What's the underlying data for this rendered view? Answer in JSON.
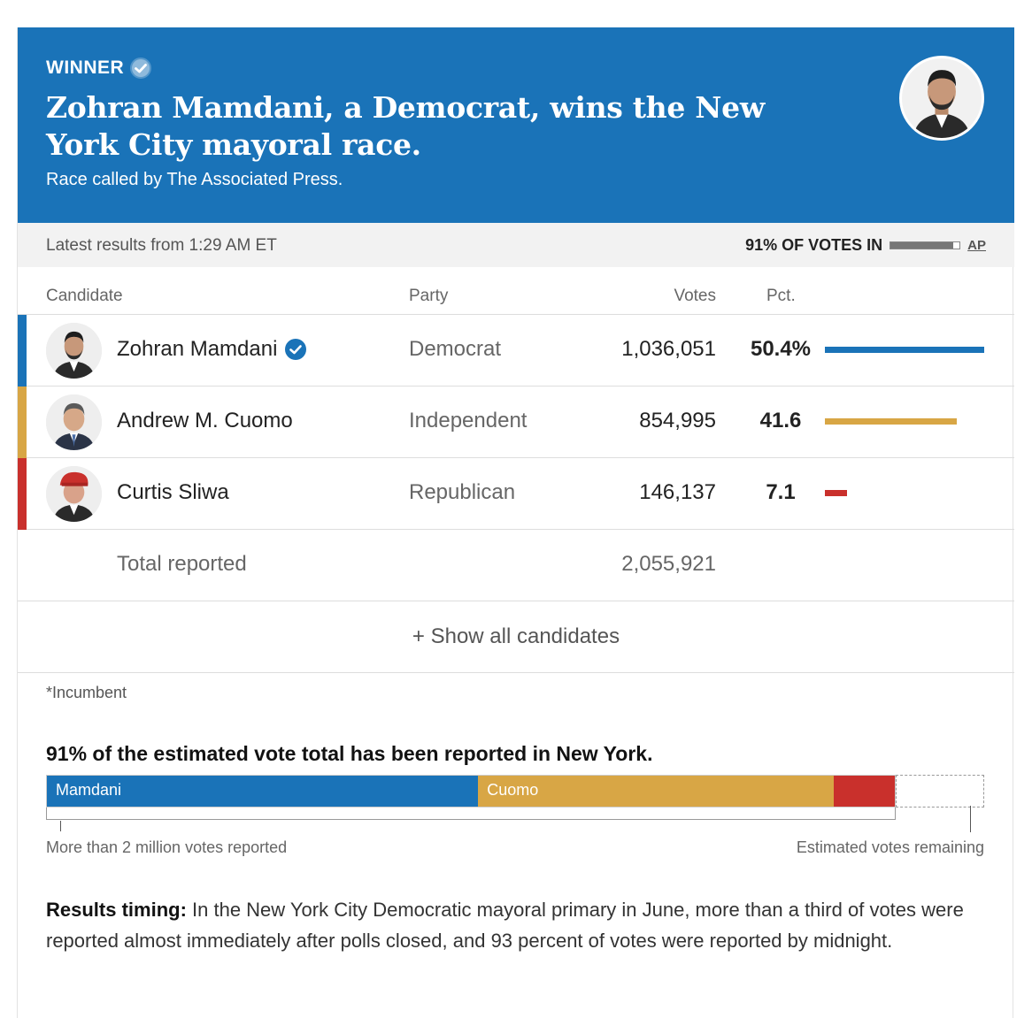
{
  "header": {
    "winner_label": "WINNER",
    "headline": "Zohran Mamdani, a Democrat, wins the New York City mayoral race.",
    "called_by": "Race called by The Associated Press."
  },
  "status": {
    "latest": "Latest results from 1:29 AM ET",
    "votes_in": "91% OF VOTES IN",
    "votes_in_fraction": 0.91,
    "source": "AP"
  },
  "table": {
    "headers": {
      "candidate": "Candidate",
      "party": "Party",
      "votes": "Votes",
      "pct": "Pct."
    },
    "rows": [
      {
        "name": "Zohran Mamdani",
        "party": "Democrat",
        "votes": "1,036,051",
        "pct": "50.4%",
        "pct_value": 50.4,
        "color": "#1a73b8",
        "winner": true
      },
      {
        "name": "Andrew M. Cuomo",
        "party": "Independent",
        "votes": "854,995",
        "pct": "41.6",
        "pct_value": 41.6,
        "color": "#d8a645",
        "winner": false
      },
      {
        "name": "Curtis Sliwa",
        "party": "Republican",
        "votes": "146,137",
        "pct": "7.1",
        "pct_value": 7.1,
        "color": "#c9302c",
        "winner": false
      }
    ],
    "total_label": "Total reported",
    "total_value": "2,055,921",
    "show_all": "+ Show all candidates",
    "incumbent_note": "*Incumbent"
  },
  "estimate": {
    "title": "91% of the estimated vote total has been reported in New York.",
    "segments": [
      {
        "label": "Mamdani",
        "share": 50.4,
        "color": "#1a73b8"
      },
      {
        "label": "Cuomo",
        "share": 41.6,
        "color": "#d8a645"
      },
      {
        "label": "",
        "share": 7.1,
        "color": "#c9302c"
      }
    ],
    "reported_label": "More than 2 million votes reported",
    "remaining_label": "Estimated votes remaining"
  },
  "timing": {
    "label": "Results timing:",
    "text": " In the New York City Democratic mayoral primary in June, more than a third of votes were reported almost immediately after polls closed, and 93 percent of votes were reported by midnight."
  }
}
